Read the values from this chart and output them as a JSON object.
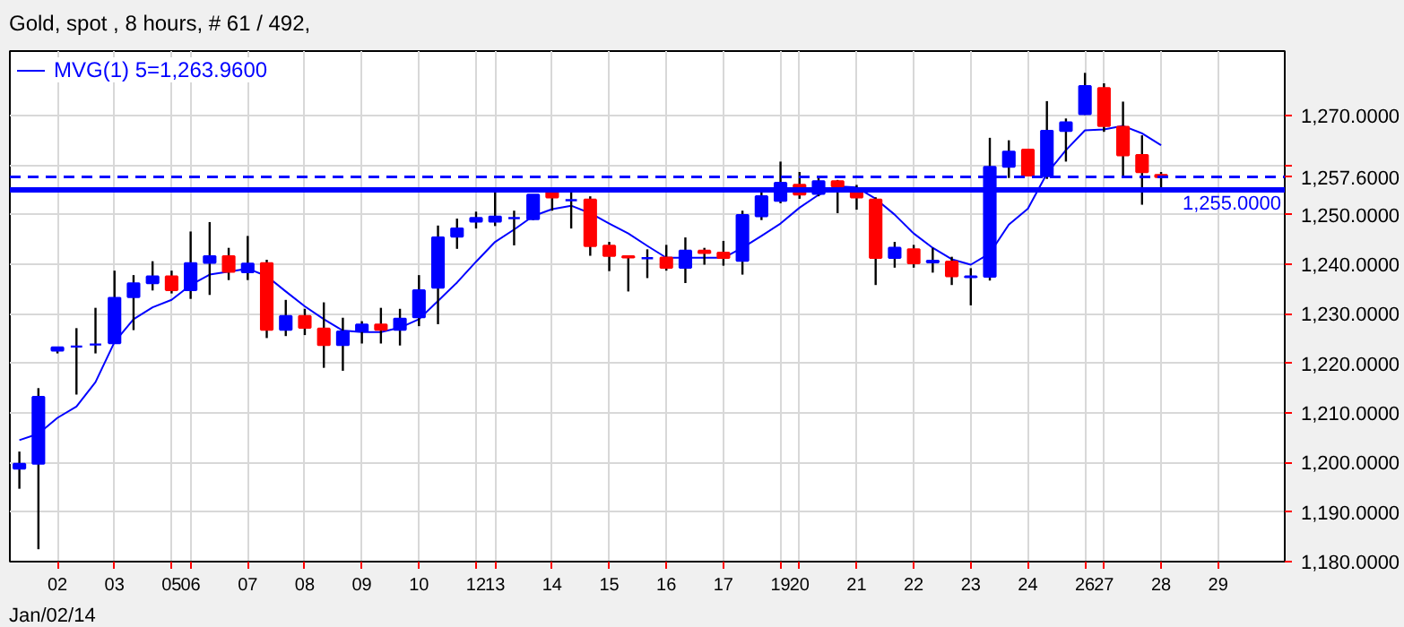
{
  "chart_data": {
    "type": "candlestick",
    "title": "Gold, spot , 8 hours, # 61 / 492,",
    "categories": [
      null,
      null,
      "02",
      null,
      null,
      "03",
      null,
      null,
      "05",
      "06",
      null,
      null,
      "07",
      null,
      null,
      "08",
      null,
      null,
      "09",
      null,
      null,
      "10",
      null,
      null,
      "12",
      "13",
      null,
      null,
      "14",
      null,
      null,
      "15",
      null,
      null,
      "16",
      null,
      null,
      "17",
      null,
      null,
      "19",
      "20",
      null,
      null,
      "21",
      null,
      null,
      "22",
      null,
      null,
      "23",
      null,
      null,
      "24",
      null,
      null,
      "26",
      "27",
      null,
      null,
      "28",
      null,
      null,
      "29",
      null,
      null,
      null
    ],
    "ohlc": [
      [
        1198.8,
        1202.2,
        1194.7,
        1199.7
      ],
      [
        1199.8,
        1215.0,
        1182.5,
        1213.2
      ],
      [
        1222.6,
        1223.2,
        1222.0,
        1223.2
      ],
      [
        1223.4,
        1227.1,
        1213.7,
        1223.4
      ],
      [
        1223.8,
        1231.2,
        1222.0,
        1223.8
      ],
      [
        1224.1,
        1238.7,
        1224.1,
        1233.2
      ],
      [
        1233.4,
        1237.8,
        1226.7,
        1236.1
      ],
      [
        1236.2,
        1240.6,
        1234.7,
        1237.5
      ],
      [
        1237.5,
        1238.7,
        1234.1,
        1234.8
      ],
      [
        1234.8,
        1246.6,
        1233.0,
        1240.2
      ],
      [
        1240.3,
        1248.5,
        1233.8,
        1241.6
      ],
      [
        1241.6,
        1243.3,
        1236.8,
        1238.5
      ],
      [
        1238.4,
        1245.7,
        1236.8,
        1240.1
      ],
      [
        1240.2,
        1240.9,
        1225.1,
        1226.8
      ],
      [
        1226.8,
        1232.8,
        1225.5,
        1229.5
      ],
      [
        1229.5,
        1231.0,
        1225.7,
        1227.2
      ],
      [
        1227.0,
        1232.3,
        1219.1,
        1223.7
      ],
      [
        1223.7,
        1229.2,
        1218.5,
        1226.4
      ],
      [
        1226.5,
        1228.5,
        1224.0,
        1227.8
      ],
      [
        1227.8,
        1231.2,
        1224.0,
        1226.8
      ],
      [
        1226.8,
        1231.0,
        1223.6,
        1229.0
      ],
      [
        1229.3,
        1237.8,
        1227.5,
        1234.7
      ],
      [
        1235.3,
        1247.8,
        1227.9,
        1245.4
      ],
      [
        1245.6,
        1249.2,
        1243.1,
        1247.2
      ],
      [
        1248.6,
        1250.6,
        1247.2,
        1249.3
      ],
      [
        1248.6,
        1255.3,
        1247.7,
        1249.6
      ],
      [
        1249.3,
        1250.8,
        1243.8,
        1249.3
      ],
      [
        1249.1,
        1254.0,
        1248.9,
        1254.0
      ],
      [
        1254.5,
        1254.9,
        1250.8,
        1253.5
      ],
      [
        1252.9,
        1255.2,
        1247.2,
        1252.9
      ],
      [
        1253.0,
        1253.7,
        1241.7,
        1243.7
      ],
      [
        1243.7,
        1244.5,
        1238.6,
        1241.7
      ],
      [
        1241.6,
        1241.6,
        1234.5,
        1241.4
      ],
      [
        1241.2,
        1243.0,
        1237.2,
        1241.2
      ],
      [
        1241.3,
        1243.9,
        1238.7,
        1239.3
      ],
      [
        1239.3,
        1245.4,
        1236.2,
        1242.7
      ],
      [
        1242.7,
        1243.3,
        1239.9,
        1242.3
      ],
      [
        1242.3,
        1244.7,
        1239.7,
        1241.3
      ],
      [
        1240.7,
        1250.8,
        1237.9,
        1249.9
      ],
      [
        1249.7,
        1255.1,
        1248.9,
        1253.7
      ],
      [
        1252.8,
        1260.7,
        1252.3,
        1256.4
      ],
      [
        1256.0,
        1258.6,
        1253.2,
        1254.1
      ],
      [
        1254.2,
        1257.4,
        1253.7,
        1256.7
      ],
      [
        1256.7,
        1257.0,
        1250.3,
        1255.7
      ],
      [
        1255.2,
        1256.0,
        1251.0,
        1253.5
      ],
      [
        1253.0,
        1253.5,
        1235.8,
        1241.3
      ],
      [
        1241.3,
        1244.5,
        1239.3,
        1243.3
      ],
      [
        1243.0,
        1243.9,
        1239.3,
        1240.2
      ],
      [
        1240.4,
        1243.3,
        1238.3,
        1240.7
      ],
      [
        1240.5,
        1241.5,
        1235.8,
        1237.6
      ],
      [
        1237.4,
        1239.2,
        1231.7,
        1237.5
      ],
      [
        1237.5,
        1265.5,
        1236.7,
        1259.6
      ],
      [
        1259.7,
        1265.0,
        1257.4,
        1262.7
      ],
      [
        1263.1,
        1263.1,
        1257.7,
        1257.9
      ],
      [
        1257.8,
        1272.9,
        1257.2,
        1266.9
      ],
      [
        1266.9,
        1269.4,
        1260.7,
        1268.6
      ],
      [
        1270.3,
        1278.6,
        1270.1,
        1275.9
      ],
      [
        1275.5,
        1276.5,
        1266.7,
        1267.9
      ],
      [
        1267.7,
        1272.8,
        1257.4,
        1262.0
      ],
      [
        1262.0,
        1266.0,
        1252.0,
        1258.6
      ],
      [
        1258.0,
        1258.6,
        1255.5,
        1257.6
      ],
      null,
      null,
      null,
      null,
      null,
      null
    ],
    "colors": [
      "#0000ff",
      "#0000ff",
      "#0000ff",
      "#0000ff",
      "#0000ff",
      "#0000ff",
      "#0000ff",
      "#0000ff",
      "#ff0000",
      "#0000ff",
      "#0000ff",
      "#ff0000",
      "#0000ff",
      "#ff0000",
      "#0000ff",
      "#ff0000",
      "#ff0000",
      "#0000ff",
      "#0000ff",
      "#ff0000",
      "#0000ff",
      "#0000ff",
      "#0000ff",
      "#0000ff",
      "#0000ff",
      "#0000ff",
      "#0000ff",
      "#0000ff",
      "#ff0000",
      "#0000ff",
      "#ff0000",
      "#ff0000",
      "#ff0000",
      "#0000ff",
      "#ff0000",
      "#0000ff",
      "#ff0000",
      "#ff0000",
      "#0000ff",
      "#0000ff",
      "#0000ff",
      "#ff0000",
      "#0000ff",
      "#ff0000",
      "#ff0000",
      "#ff0000",
      "#0000ff",
      "#ff0000",
      "#0000ff",
      "#ff0000",
      "#0000ff",
      "#0000ff",
      "#0000ff",
      "#ff0000",
      "#0000ff",
      "#0000ff",
      "#0000ff",
      "#ff0000",
      "#ff0000",
      "#ff0000",
      "#ff0000",
      null,
      null,
      null,
      null,
      null,
      null
    ],
    "series": [
      {
        "type": "line",
        "name": "MVG(1) 5=1,263.9600",
        "color": "#0000ff",
        "values": [
          1204.5,
          1205.8,
          1209.0,
          1211.3,
          1216.2,
          1224.3,
          1228.9,
          1231.3,
          1232.8,
          1235.8,
          1237.9,
          1238.5,
          1239.1,
          1237.6,
          1234.5,
          1231.5,
          1228.9,
          1226.6,
          1226.3,
          1226.3,
          1227.2,
          1228.9,
          1232.6,
          1236.3,
          1240.5,
          1244.5,
          1247.0,
          1249.7,
          1251.1,
          1251.8,
          1250.3,
          1248.2,
          1246.2,
          1243.7,
          1241.3,
          1241.3,
          1241.3,
          1241.3,
          1243.3,
          1245.7,
          1248.2,
          1251.4,
          1254.0,
          1255.7,
          1255.5,
          1253.2,
          1250.0,
          1246.2,
          1243.3,
          1241.0,
          1239.9,
          1242.2,
          1248.0,
          1251.2,
          1258.3,
          1263.0,
          1267.0,
          1267.2,
          1267.9,
          1266.4,
          1264.0,
          null,
          null,
          null,
          null,
          null,
          null
        ]
      }
    ],
    "ylim": [
      1180,
      1283
    ],
    "yticks": [
      {
        "value": 1180,
        "label": "1,180.0000"
      },
      {
        "value": 1190,
        "label": "1,190.0000"
      },
      {
        "value": 1200,
        "label": "1,200.0000"
      },
      {
        "value": 1210,
        "label": "1,210.0000"
      },
      {
        "value": 1220,
        "label": "1,220.0000"
      },
      {
        "value": 1230,
        "label": "1,230.0000"
      },
      {
        "value": 1240,
        "label": "1,240.0000"
      },
      {
        "value": 1250,
        "label": "1,250.0000"
      },
      {
        "value": 1260,
        "label": null
      },
      {
        "value": 1270,
        "label": "1,270.0000"
      }
    ],
    "ref_lines": [
      {
        "axis": "y",
        "value": 1257.6,
        "label": "1,257.6000",
        "color": "#0000ff",
        "line_style": "dashed"
      },
      {
        "axis": "y",
        "value": 1255.0,
        "label": "1,255.0000",
        "color": "#0000ff",
        "line_style": "solid"
      }
    ],
    "annotations": [
      "Jan/02/14"
    ],
    "grid": true,
    "legend": "top left"
  }
}
